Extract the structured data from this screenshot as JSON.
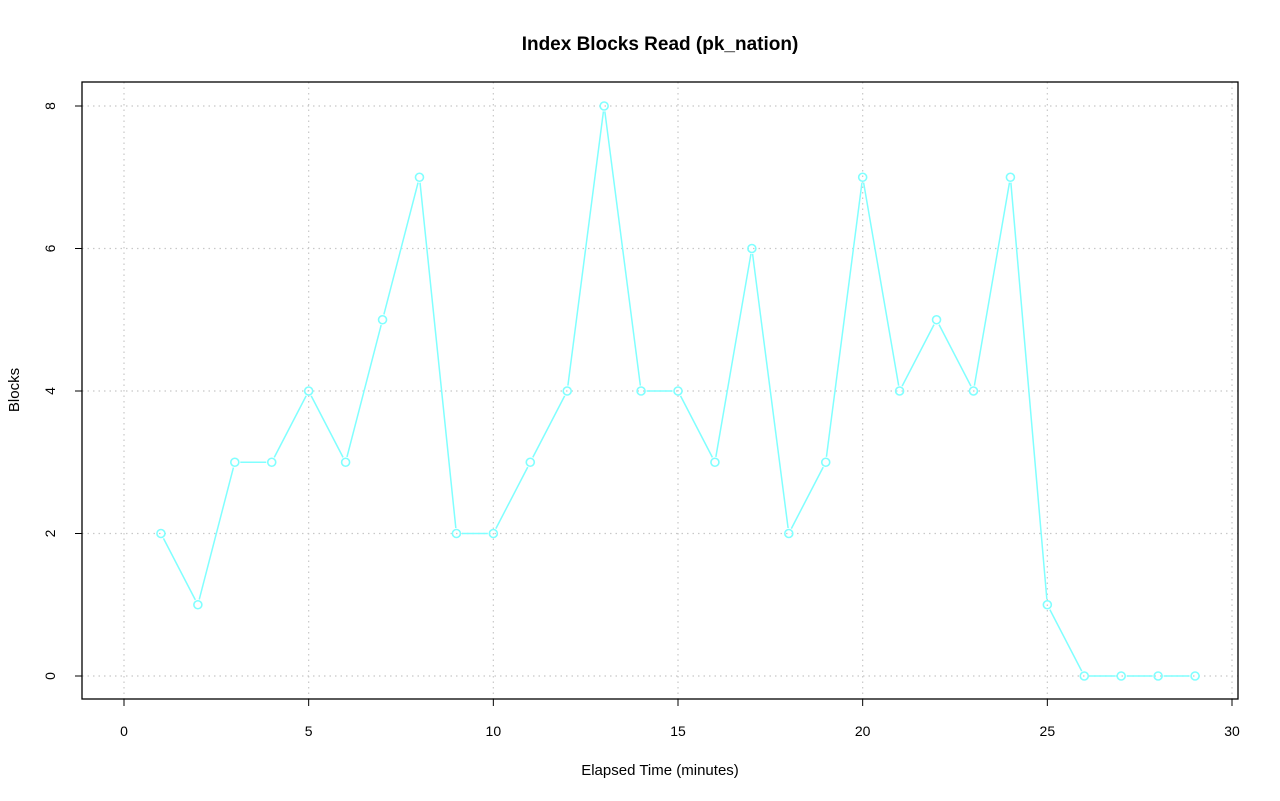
{
  "chart_data": {
    "type": "line",
    "title": "Index Blocks Read (pk_nation)",
    "xlabel": "Elapsed Time (minutes)",
    "ylabel": "Blocks",
    "xlim": [
      0,
      30
    ],
    "ylim": [
      0,
      8
    ],
    "xticks": [
      "0",
      "5",
      "10",
      "15",
      "20",
      "25",
      "30"
    ],
    "yticks": [
      "0",
      "2",
      "4",
      "6",
      "8"
    ],
    "grid": true,
    "grid_style": "dotted",
    "series": [
      {
        "color": "#80ffff",
        "marker": "open-circle",
        "x": [
          1,
          2,
          3,
          4,
          5,
          6,
          7,
          8,
          9,
          10,
          11,
          12,
          13,
          14,
          15,
          16,
          17,
          18,
          19,
          20,
          21,
          22,
          23,
          24,
          25,
          26,
          27,
          28,
          29
        ],
        "y": [
          2,
          1,
          3,
          3,
          4,
          3,
          5,
          7,
          2,
          2,
          3,
          4,
          8,
          4,
          4,
          3,
          6,
          2,
          3,
          7,
          4,
          5,
          4,
          7,
          1,
          0,
          0,
          0,
          0
        ]
      }
    ]
  }
}
